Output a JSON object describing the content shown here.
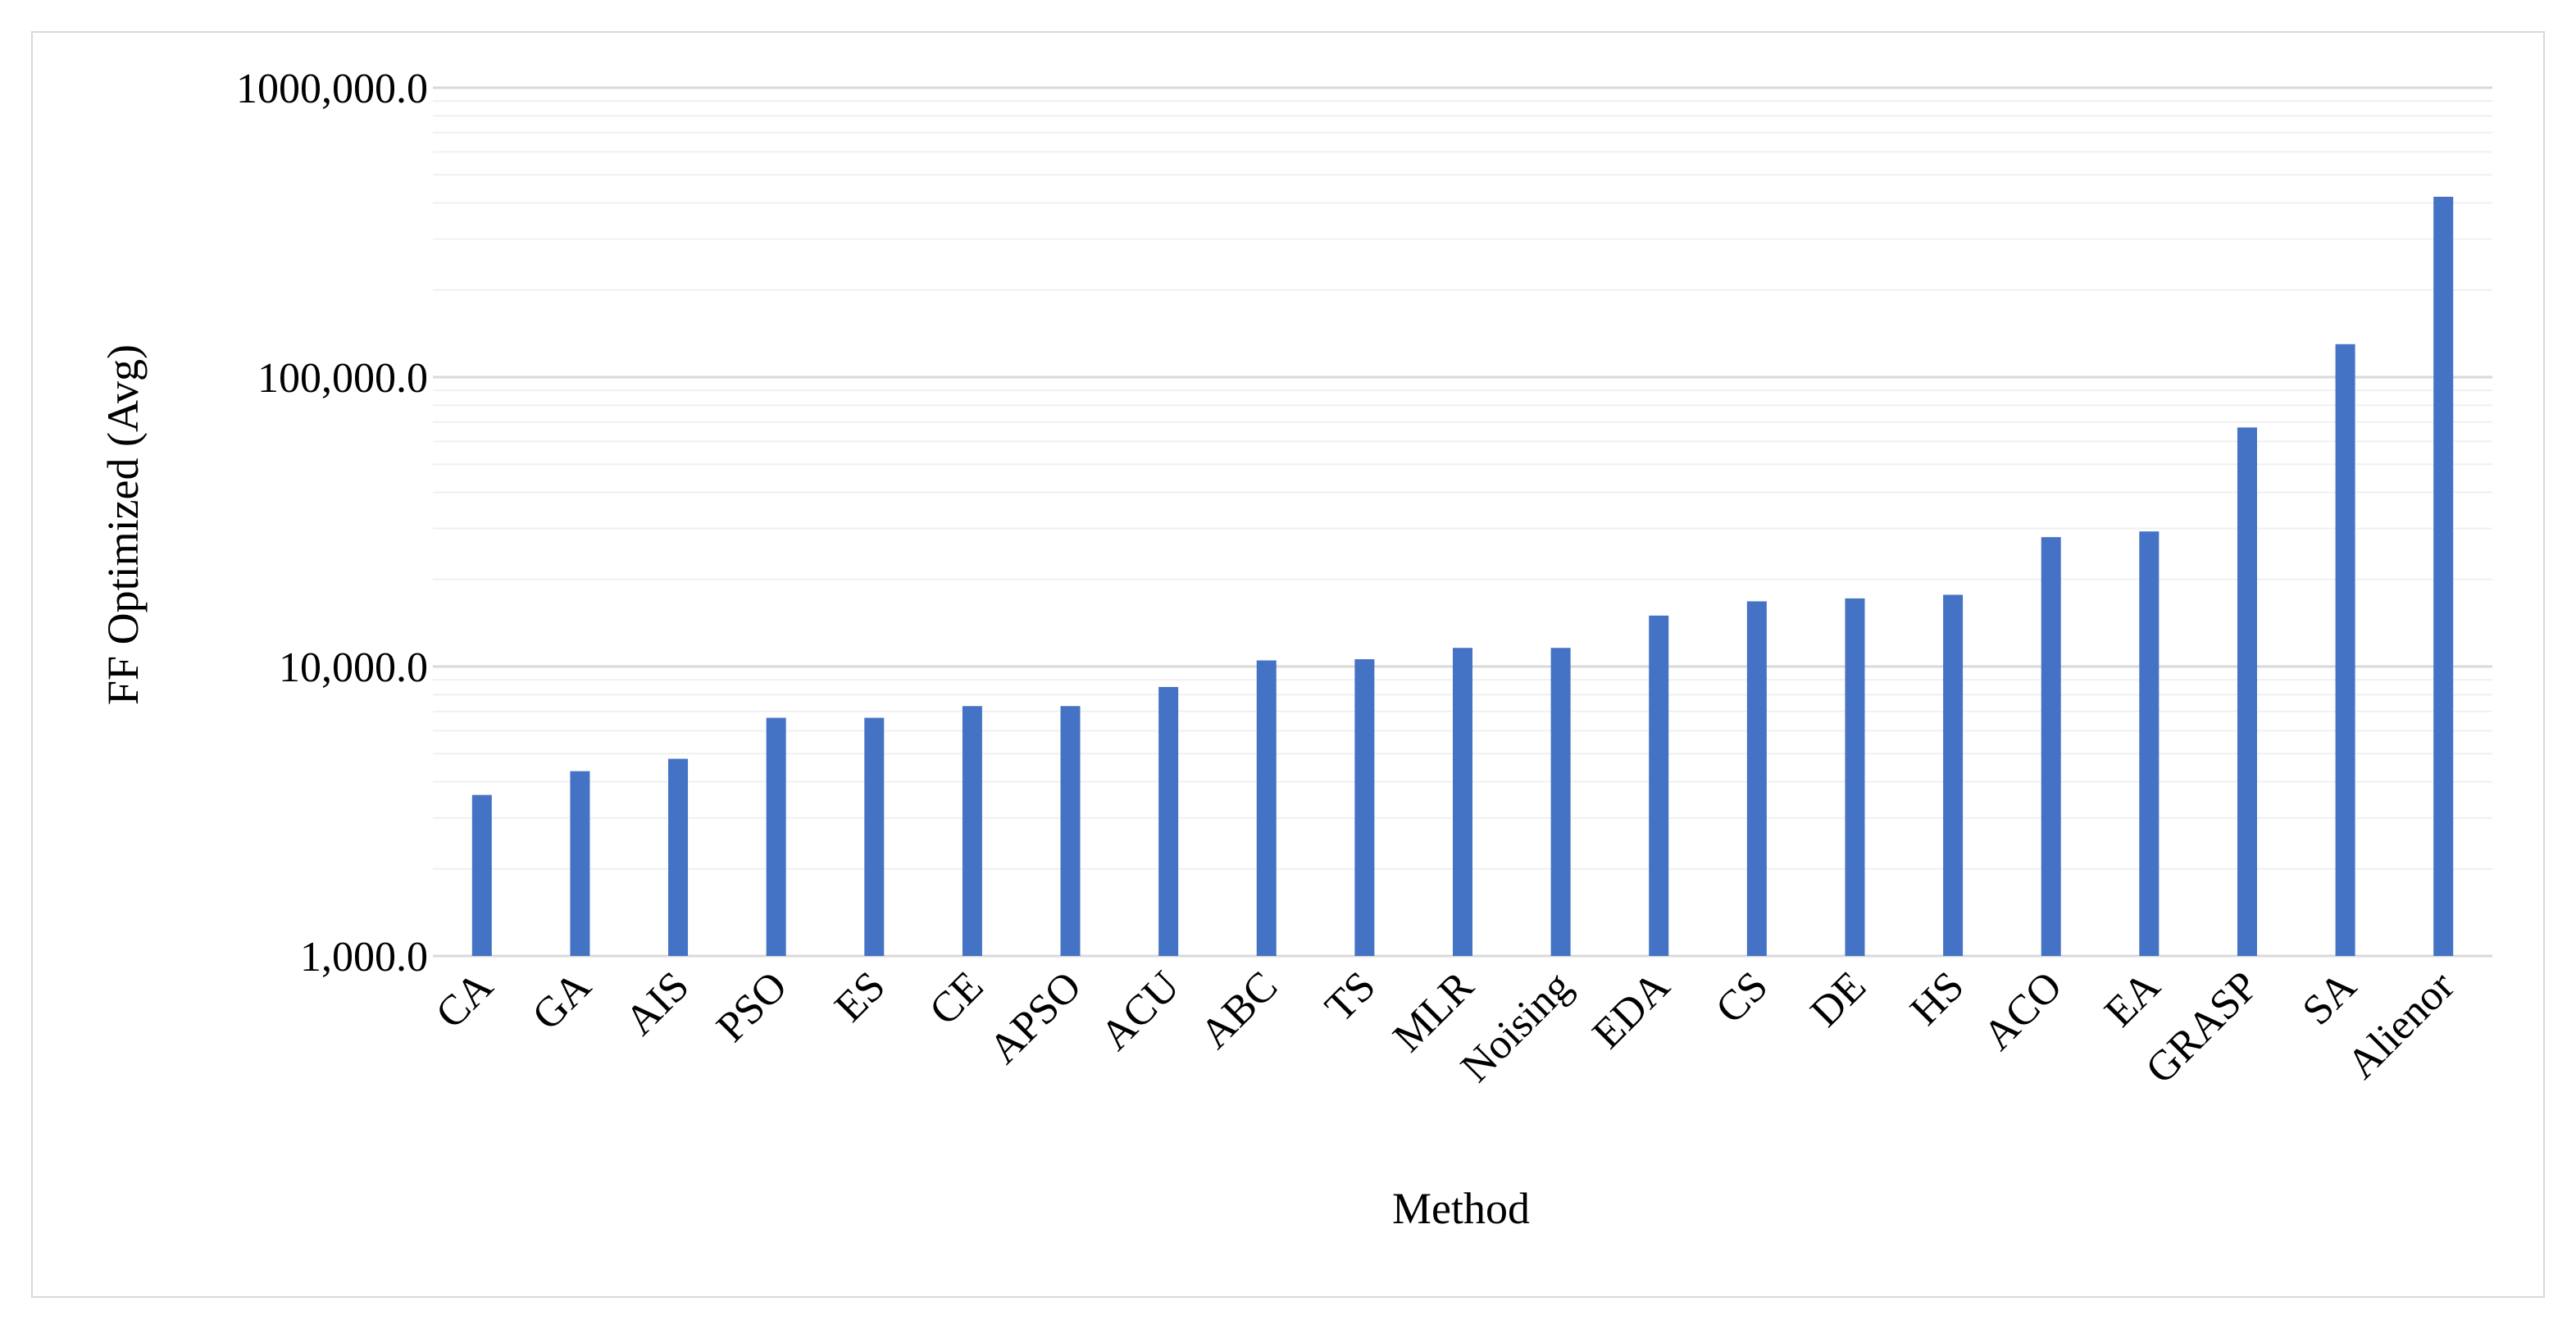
{
  "chart_data": {
    "type": "bar",
    "title": "",
    "xlabel": "Method",
    "ylabel": "FF Optimized (Avg)",
    "y_scale": "log",
    "ylim": [
      1000,
      1000000
    ],
    "y_ticks": [
      1000,
      10000,
      100000,
      1000000
    ],
    "y_tick_labels": [
      "1,000.0",
      "10,000.0",
      "100,000.0",
      "1000,000.0"
    ],
    "grid": "major and minor horizontal",
    "legend": "none",
    "bar_color": "#4472c4",
    "gridline_color": "#d9d9d9",
    "categories": [
      "CA",
      "GA",
      "AIS",
      "PSO",
      "ES",
      "CE",
      "APSO",
      "ACU",
      "ABC",
      "TS",
      "MLR",
      "Noising",
      "EDA",
      "CS",
      "DE",
      "HS",
      "ACO",
      "EA",
      "GRASP",
      "SA",
      "Alienor"
    ],
    "values": [
      3600,
      4350,
      4800,
      6650,
      6650,
      7300,
      7300,
      8500,
      10500,
      10600,
      11600,
      11600,
      15000,
      16800,
      17200,
      17700,
      28000,
      29300,
      67000,
      130000,
      420000
    ]
  }
}
